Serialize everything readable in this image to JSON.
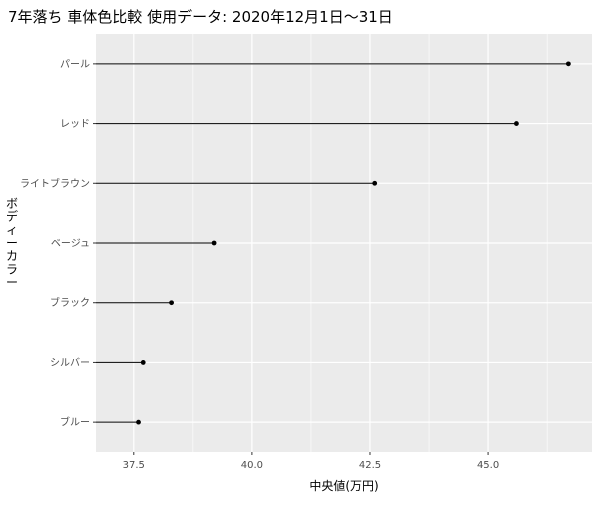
{
  "chart_data": {
    "type": "lollipop",
    "title": "7年落ち 車体色比較 使用データ: 2020年12月1日～31日",
    "xlabel": "中央値(万円)",
    "ylabel": "ボディーカラー",
    "categories": [
      "パール",
      "レッド",
      "ライトブラウン",
      "ベージュ",
      "ブラック",
      "シルバー",
      "ブルー"
    ],
    "values": [
      46.7,
      45.6,
      42.6,
      39.2,
      38.3,
      37.7,
      37.6
    ],
    "x_ticks": [
      "37.5",
      "40.0",
      "42.5",
      "45.0"
    ],
    "x_tick_values": [
      37.5,
      40.0,
      42.5,
      45.0
    ],
    "xlim": [
      36.7,
      47.2
    ],
    "baseline": 36.7,
    "grid": true,
    "colors": {
      "panel": "#ebebeb",
      "grid_major": "#ffffff",
      "segment": "#000000",
      "point": "#000000",
      "tick_label": "#4d4d4d"
    }
  }
}
